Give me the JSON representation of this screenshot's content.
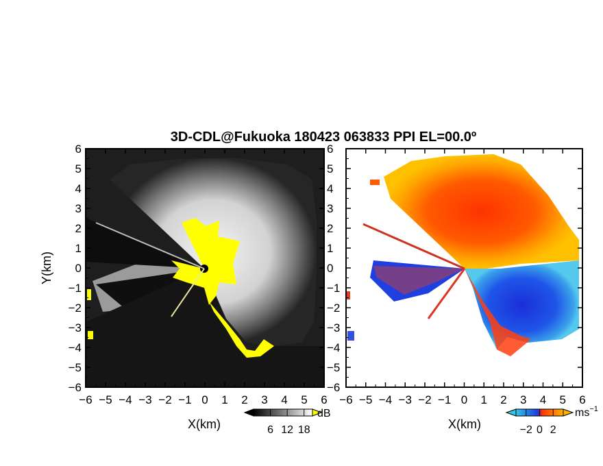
{
  "chart_data": [
    {
      "type": "heatmap",
      "title": "3D-CDL@Fukuoka 180423 063833 PPI EL=00.0º",
      "xlabel": "X(km)",
      "ylabel": "Y(km)",
      "xlim": [
        -6,
        6
      ],
      "ylim": [
        -6,
        6
      ],
      "xticks": [
        "−6",
        "−5",
        "−4",
        "−3",
        "−2",
        "−1",
        "0",
        "1",
        "2",
        "3",
        "4",
        "5",
        "6"
      ],
      "yticks": [
        "6",
        "5",
        "4",
        "3",
        "2",
        "1",
        "0",
        "−1",
        "−2",
        "−3",
        "−4",
        "−5",
        "−6"
      ],
      "colorbar": {
        "unit": "dB",
        "ticks": [
          "6",
          "12",
          "18"
        ],
        "range": [
          0,
          21
        ],
        "palette": "grayscale"
      },
      "highlight_color": "#ffff00"
    },
    {
      "type": "heatmap",
      "xlabel": "X(km)",
      "xlim": [
        -6,
        6
      ],
      "ylim": [
        -6,
        6
      ],
      "xticks": [
        "−6",
        "−5",
        "−4",
        "−3",
        "−2",
        "−1",
        "0",
        "1",
        "2",
        "3",
        "4",
        "5",
        "6"
      ],
      "yticks": [
        "6",
        "5",
        "4",
        "3",
        "2",
        "1",
        "0",
        "−1",
        "−2",
        "−3",
        "−4",
        "−5",
        "−6"
      ],
      "colorbar": {
        "unit": "ms",
        "unit_superscript": "−1",
        "ticks": [
          "−2",
          "0",
          "2"
        ],
        "range": [
          -3.5,
          3.5
        ],
        "palette": "cyan-blue-red-yellow"
      }
    }
  ],
  "colors": {
    "velocity_neg_far": "#33c6e6",
    "velocity_neg": "#1a3fe0",
    "velocity_pos": "#ff3300",
    "velocity_pos_far": "#ffb000",
    "snr_high": "#ffffff",
    "snr_low": "#000000",
    "snr_highlight": "#ffff00"
  }
}
